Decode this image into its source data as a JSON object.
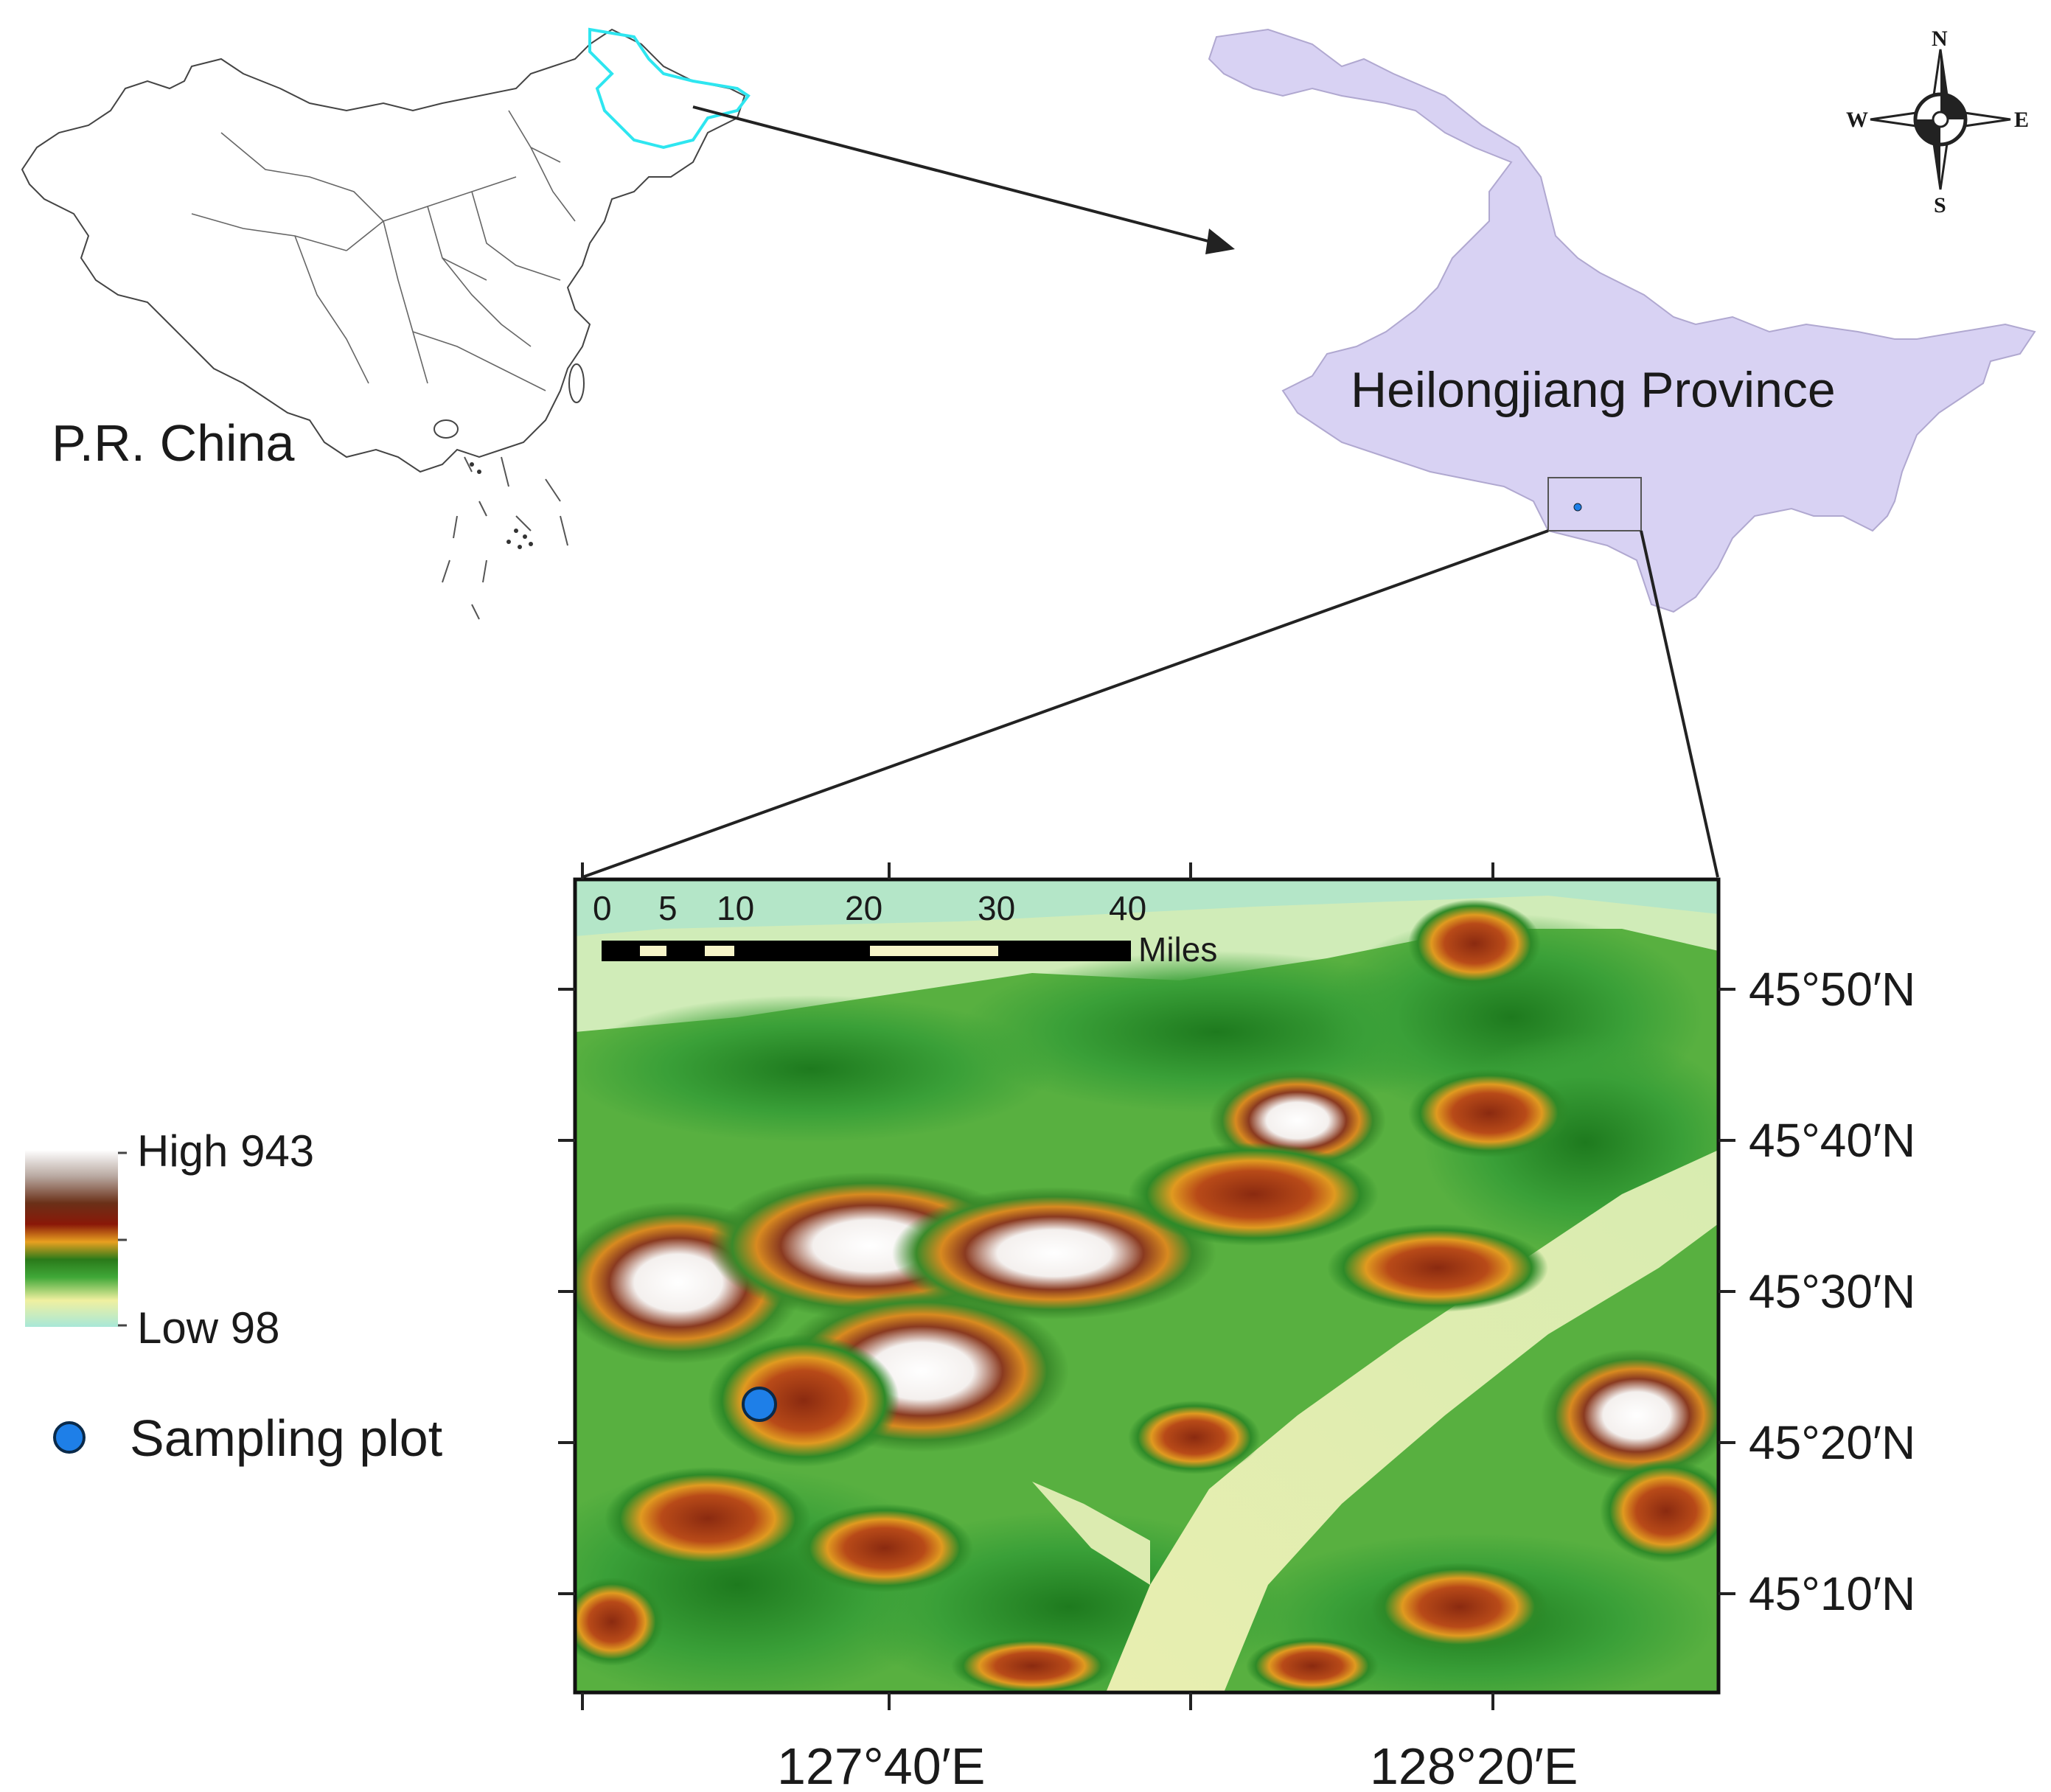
{
  "inset_china": {
    "label": "P.R. China"
  },
  "inset_province": {
    "label": "Heilongjiang Province",
    "fill_color": "#d8d2f3",
    "highlight_color": "#2ee6f0"
  },
  "compass": {
    "north": "N",
    "south": "S",
    "east": "E",
    "west": "W"
  },
  "scale_bar": {
    "ticks": [
      "0",
      "5",
      "10",
      "20",
      "30",
      "40"
    ],
    "unit": "Miles"
  },
  "latitude_labels": [
    "45°50′N",
    "45°40′N",
    "45°30′N",
    "45°20′N",
    "45°10′N"
  ],
  "longitude_labels": [
    "127°40′E",
    "128°20′E"
  ],
  "legend": {
    "elevation_high": "High 943",
    "elevation_low": "Low  98",
    "ramp_colors": [
      "#ffffff",
      "#c8b8b0",
      "#7a3a20",
      "#8a1a10",
      "#e8a020",
      "#2a8a2a",
      "#3aa83a",
      "#f0f0a0",
      "#a8e8d8"
    ],
    "sampling_plot": "Sampling plot",
    "sampling_plot_color": "#1e7fe8"
  }
}
